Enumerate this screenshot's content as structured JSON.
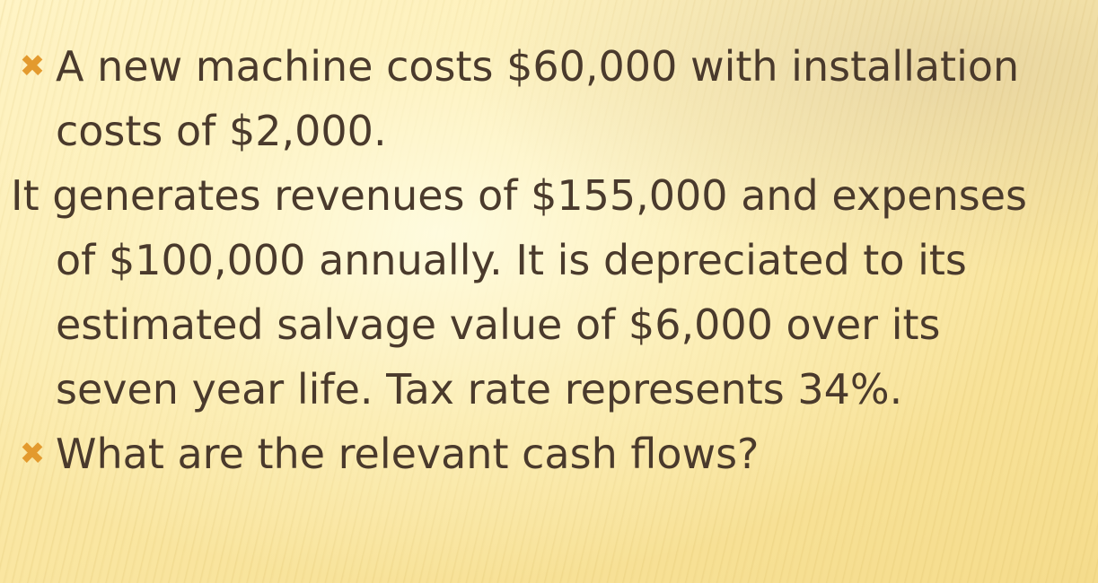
{
  "slide": {
    "bullets": [
      {
        "icon": "x-bullet-icon",
        "lines": [
          "A new machine costs $60,000 with installation",
          "costs of $2,000."
        ]
      },
      {
        "icon": null,
        "lines": [
          "It generates revenues of $155,000 and expenses",
          "of $100,000 annually. It is depreciated to its",
          "estimated salvage value of $6,000 over its",
          "seven year life. Tax rate represents 34%."
        ]
      },
      {
        "icon": "x-bullet-icon",
        "lines": [
          "What are the relevant cash flows?"
        ]
      }
    ],
    "bullet_glyph": "✖",
    "colors": {
      "text": "#4a3a2c",
      "bullet": "#e39a2e",
      "background": "#fbefb5"
    }
  }
}
